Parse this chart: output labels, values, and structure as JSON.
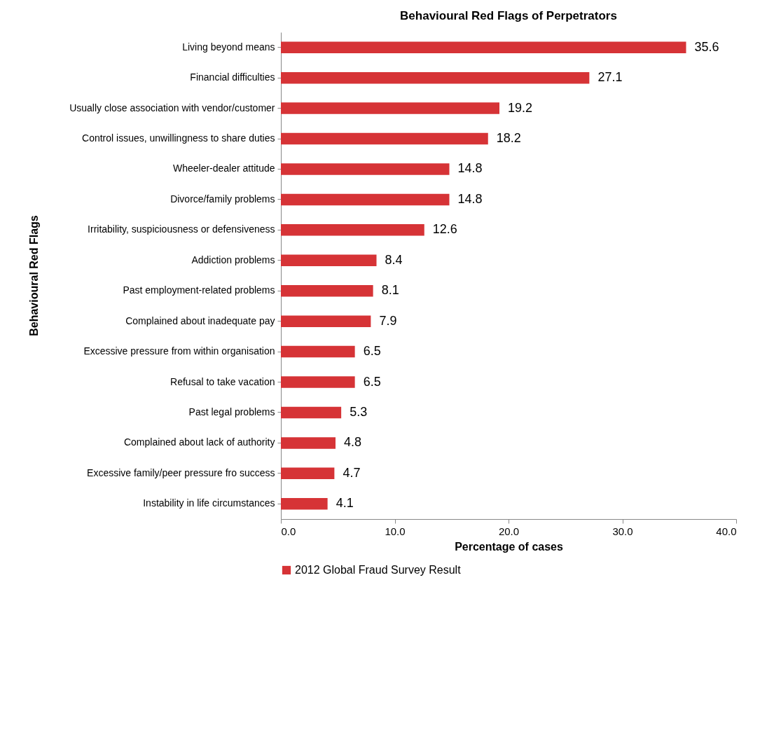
{
  "chart_data": {
    "type": "bar",
    "orientation": "horizontal",
    "title": "Behavioural Red Flags of Perpetrators",
    "xlabel": "Percentage of cases",
    "ylabel": "Behavioural Red Flags",
    "categories": [
      "Living beyond means",
      "Financial difficulties",
      "Usually close association with vendor/customer",
      "Control issues, unwillingness to share duties",
      "Wheeler-dealer attitude",
      "Divorce/family problems",
      "Irritability, suspiciousness or defensiveness",
      "Addiction problems",
      "Past employment-related problems",
      "Complained about inadequate pay",
      "Excessive pressure from within organisation",
      "Refusal to take vacation",
      "Past legal problems",
      "Complained about lack of authority",
      "Excessive family/peer pressure fro success",
      "Instability in life circumstances"
    ],
    "series": [
      {
        "name": "2012 Global Fraud Survey Result",
        "color": "#d63336",
        "values": [
          35.6,
          27.1,
          19.2,
          18.2,
          14.8,
          14.8,
          12.6,
          8.4,
          8.1,
          7.9,
          6.5,
          6.5,
          5.3,
          4.8,
          4.7,
          4.1
        ]
      }
    ],
    "xlim": [
      0,
      40
    ],
    "xticks": [
      {
        "value": 0,
        "label": "0.0"
      },
      {
        "value": 10,
        "label": "10.0"
      },
      {
        "value": 20,
        "label": "20.0"
      },
      {
        "value": 30,
        "label": "30.0"
      },
      {
        "value": 40,
        "label": "40.0"
      }
    ],
    "data_labels": true,
    "legend": "bottom"
  }
}
